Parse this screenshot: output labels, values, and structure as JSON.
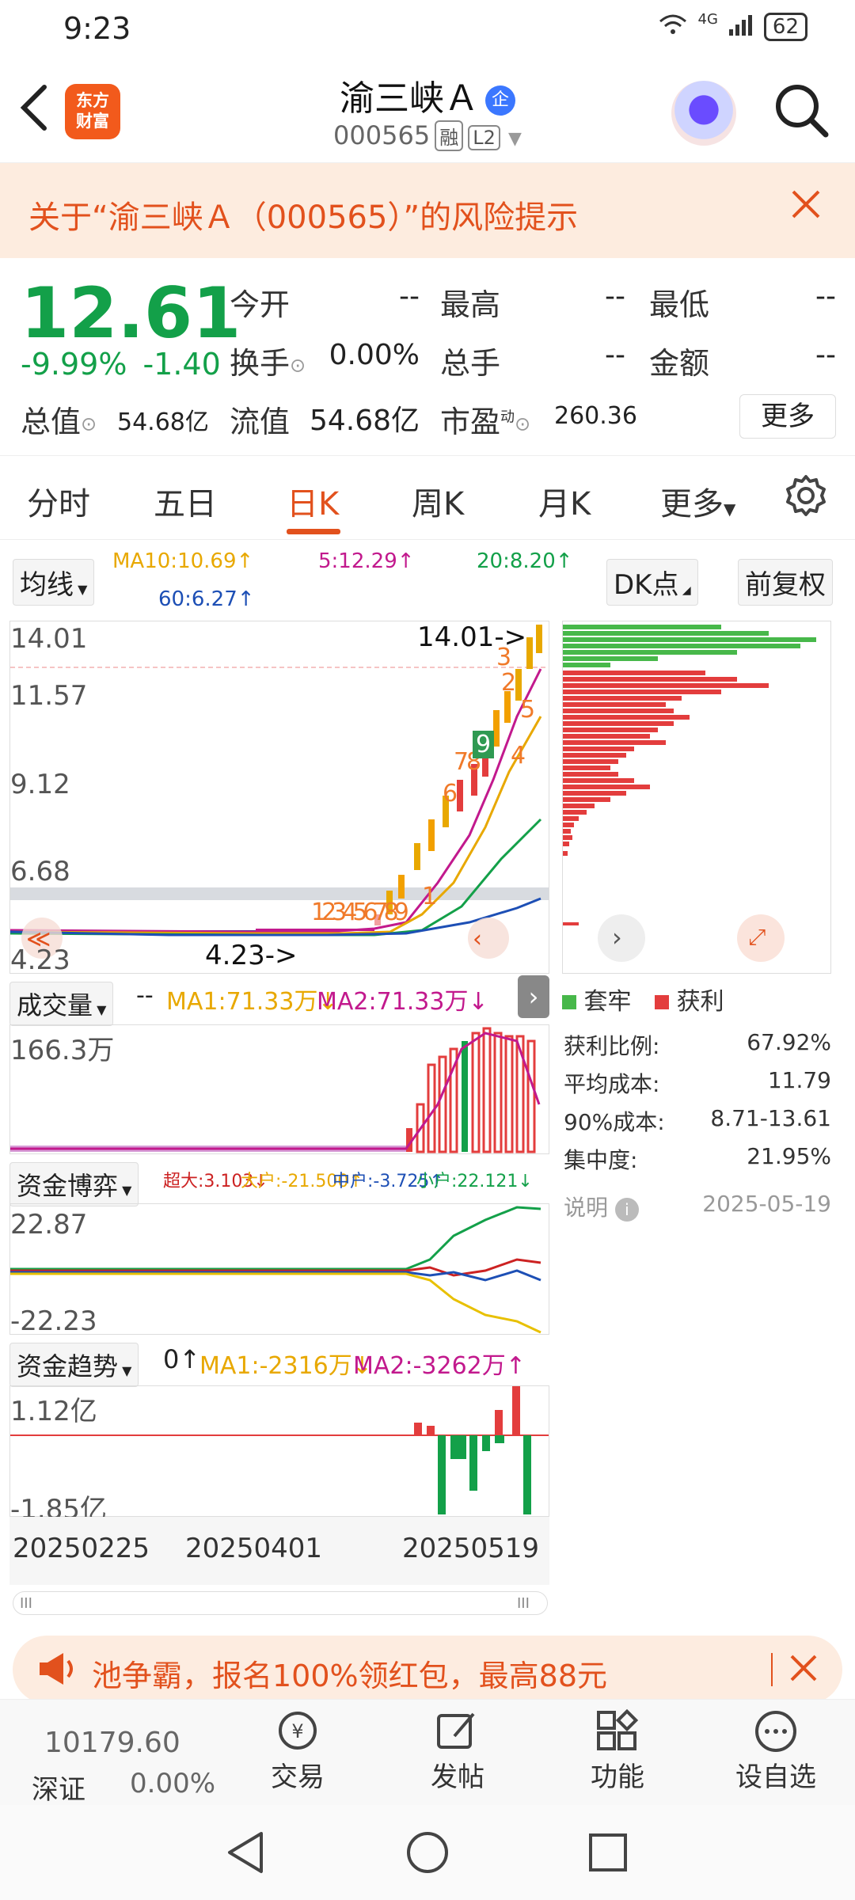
{
  "status": {
    "time": "9:23",
    "battery": "62",
    "network": "4G"
  },
  "header": {
    "title": "渝三峡Ａ",
    "badge": "企",
    "code": "000565",
    "tag1": "融",
    "tag2": "L2",
    "logo_line1": "东方",
    "logo_line2": "财富"
  },
  "risk": {
    "text": "关于“渝三峡Ａ（000565）”的风险提示"
  },
  "quote": {
    "price": "12.61",
    "change_pct": "-9.99%",
    "change_abs": "-1.40",
    "open_label": "今开",
    "open": "--",
    "high_label": "最高",
    "high": "--",
    "low_label": "最低",
    "low": "--",
    "turnover_label": "换手",
    "turnover": "0.00%",
    "volume_label": "总手",
    "volume": "--",
    "amount_label": "金额",
    "amount": "--",
    "mcap_label": "总值",
    "mcap": "54.68亿",
    "float_label": "流值",
    "float": "54.68亿",
    "pe_label": "市盈",
    "pe_sup": "动",
    "pe": "260.36",
    "more": "更多"
  },
  "tabs": [
    "分时",
    "五日",
    "日K",
    "周K",
    "月K",
    "更多"
  ],
  "kline": {
    "ma_select": "均线",
    "ma10": "MA10:10.69↑",
    "ma5": "5:12.29↑",
    "ma20": "20:8.20↑",
    "ma60": "60:6.27↑",
    "dk": "DK点",
    "fq": "前复权",
    "y_labels": [
      "14.01",
      "11.57",
      "9.12",
      "6.68",
      "4.23"
    ],
    "high_mark": "14.01->",
    "low_mark": "4.23->",
    "seq_left": "123456789",
    "seq_right": [
      "1",
      "2",
      "3",
      "4",
      "5",
      "6",
      "7",
      "8",
      "9"
    ]
  },
  "volume": {
    "select": "成交量",
    "dash": "--",
    "ma1": "MA1:71.33万↓",
    "ma2": "MA2:71.33万↓",
    "max": "166.3万"
  },
  "fund": {
    "select": "资金博弈",
    "super": "超大:3.103↓",
    "big": "大户:-21.500↑",
    "mid": "中户:-3.725↑",
    "small": "小户:22.121↓",
    "top": "22.87",
    "bottom": "-22.23"
  },
  "trend": {
    "select": "资金趋势",
    "v0": "0↑",
    "ma1": "MA1:-2316万↓",
    "ma2": "MA2:-3262万↑",
    "top": "1.12亿",
    "bottom": "-1.85亿"
  },
  "dates": [
    "20250225",
    "20250401",
    "20250519"
  ],
  "chip": {
    "legend_trap": "套牢",
    "legend_profit": "获利",
    "rows": [
      {
        "k": "获利比例:",
        "v": "67.92%"
      },
      {
        "k": "平均成本:",
        "v": "11.79"
      },
      {
        "k": "90%成本:",
        "v": "8.71-13.61"
      },
      {
        "k": "集中度:",
        "v": "21.95%"
      }
    ],
    "note": "说明",
    "date": "2025-05-19"
  },
  "banner": {
    "text": "池争霸，报名100%领红包，最高88元"
  },
  "bottom": {
    "index_value": "10179.60",
    "index_name": "深证",
    "index_pct": "0.00%",
    "items": [
      "交易",
      "发帖",
      "功能",
      "设自选"
    ]
  },
  "colors": {
    "up": "#e33d3d",
    "down": "#13a049",
    "accent": "#e2511d"
  }
}
